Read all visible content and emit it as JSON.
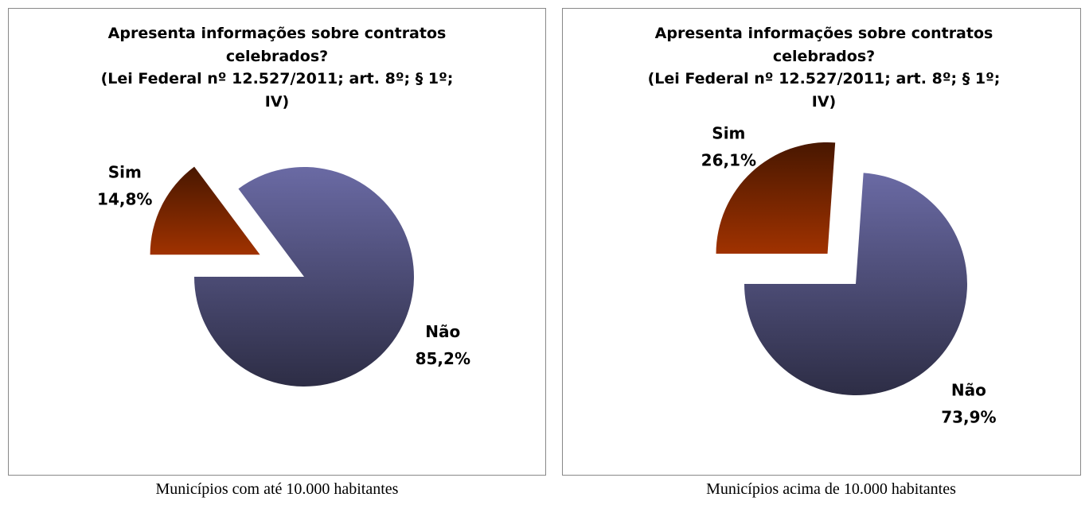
{
  "chart_data": [
    {
      "type": "pie",
      "title": "Apresenta informações sobre contratos celebrados?",
      "subtitle": "(Lei Federal nº 12.527/2011; art. 8º; § 1º; IV)",
      "categories": [
        "Sim",
        "Não"
      ],
      "values": [
        14.8,
        85.2
      ],
      "value_labels": [
        "14,8%",
        "85,2%"
      ],
      "colors": [
        "#a03200",
        "#6a6aa4"
      ],
      "exploded": "Sim",
      "caption": "Municípios com até 10.000 habitantes"
    },
    {
      "type": "pie",
      "title": "Apresenta informações sobre contratos celebrados?",
      "subtitle": "(Lei Federal nº 12.527/2011; art. 8º; § 1º; IV)",
      "categories": [
        "Sim",
        "Não"
      ],
      "values": [
        26.1,
        73.9
      ],
      "value_labels": [
        "26,1%",
        "73,9%"
      ],
      "colors": [
        "#a03200",
        "#6a6aa4"
      ],
      "exploded": "Sim",
      "caption": "Municípios acima de 10.000 habitantes"
    }
  ]
}
